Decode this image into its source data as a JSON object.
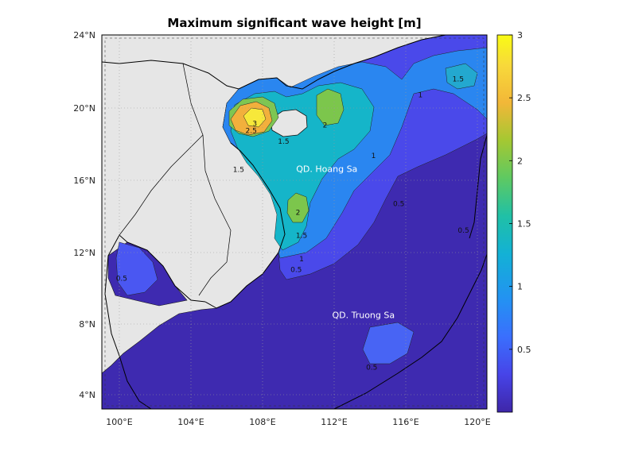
{
  "title": "Maximum significant wave height [m]",
  "map": {
    "lon_ticks": [
      "100°E",
      "104°E",
      "108°E",
      "112°E",
      "116°E",
      "120°E"
    ],
    "lat_ticks": [
      "24°N",
      "20°N",
      "16°N",
      "12°N",
      "8°N",
      "4°N"
    ],
    "lon_range": [
      99.2,
      120.6
    ],
    "lat_range": [
      3.1,
      24.1
    ],
    "land_color": "#e6e6e6",
    "grid": "dotted",
    "places": [
      {
        "name": "QD. Hoang Sa",
        "lon": 110.0,
        "lat": 16.4
      },
      {
        "name": "QD. Truong Sa",
        "lon": 112.0,
        "lat": 8.2
      }
    ],
    "contour_labels": [
      {
        "text": "3",
        "lon": 107.7,
        "lat": 19.0
      },
      {
        "text": "2.5",
        "lon": 107.5,
        "lat": 18.6
      },
      {
        "text": "2",
        "lon": 111.6,
        "lat": 18.9
      },
      {
        "text": "2",
        "lon": 110.1,
        "lat": 14.0
      },
      {
        "text": "1.5",
        "lon": 119.0,
        "lat": 21.5
      },
      {
        "text": "1.5",
        "lon": 109.3,
        "lat": 18.0
      },
      {
        "text": "1.5",
        "lon": 106.8,
        "lat": 16.4
      },
      {
        "text": "1.5",
        "lon": 110.3,
        "lat": 12.7
      },
      {
        "text": "1",
        "lon": 116.9,
        "lat": 20.6
      },
      {
        "text": "1",
        "lon": 114.3,
        "lat": 17.2
      },
      {
        "text": "1",
        "lon": 110.3,
        "lat": 11.4
      },
      {
        "text": "0.5",
        "lon": 115.7,
        "lat": 14.5
      },
      {
        "text": "0.5",
        "lon": 110.0,
        "lat": 10.8
      },
      {
        "text": "0.5",
        "lon": 100.3,
        "lat": 10.3
      },
      {
        "text": "0.5",
        "lon": 114.2,
        "lat": 5.3
      },
      {
        "text": "0.5",
        "lon": 119.3,
        "lat": 13.0
      }
    ]
  },
  "colorbar": {
    "ticks": [
      "3",
      "2.5",
      "2",
      "1.5",
      "1",
      "0.5"
    ],
    "tick_values": [
      3,
      2.5,
      2,
      1.5,
      1,
      0.5
    ],
    "range": [
      0,
      3
    ],
    "colormap": "parula",
    "stops": [
      "#3e26a8",
      "#4744e8",
      "#3a6ffd",
      "#2392f2",
      "#13b1d5",
      "#20c0a6",
      "#5ec962",
      "#a4c832",
      "#f2b738",
      "#f8d93a",
      "#f9fb15"
    ]
  }
}
